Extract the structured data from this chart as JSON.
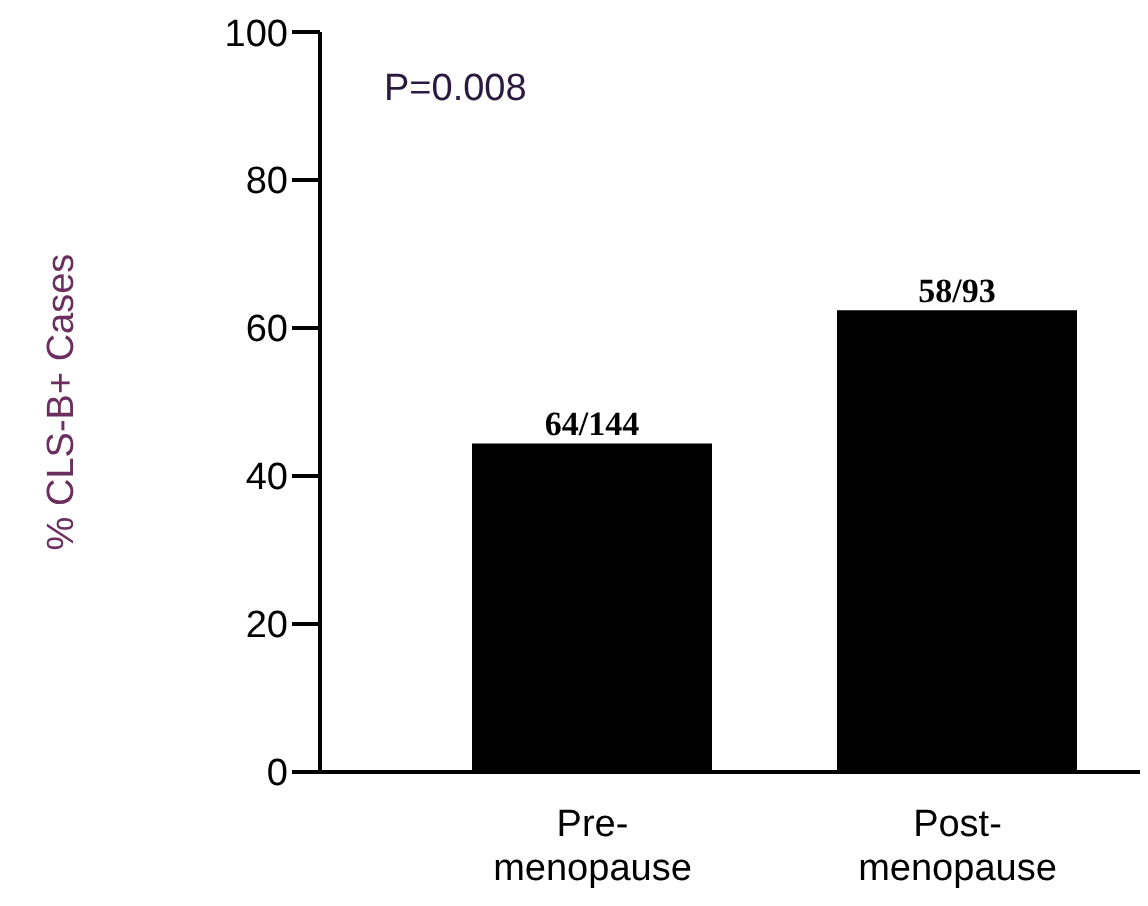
{
  "chart_data": {
    "type": "bar",
    "ylabel": "% CLS-B+ Cases",
    "categories": [
      "Pre-\nmenopause",
      "Post-\nmenopause"
    ],
    "values": [
      44.4,
      62.4
    ],
    "value_labels": [
      "64/144",
      "58/93"
    ],
    "color": "#000000",
    "ylim": [
      0,
      100
    ],
    "yticks": [
      0,
      20,
      40,
      60,
      80,
      100
    ],
    "annotations": [
      "P=0.008"
    ]
  }
}
